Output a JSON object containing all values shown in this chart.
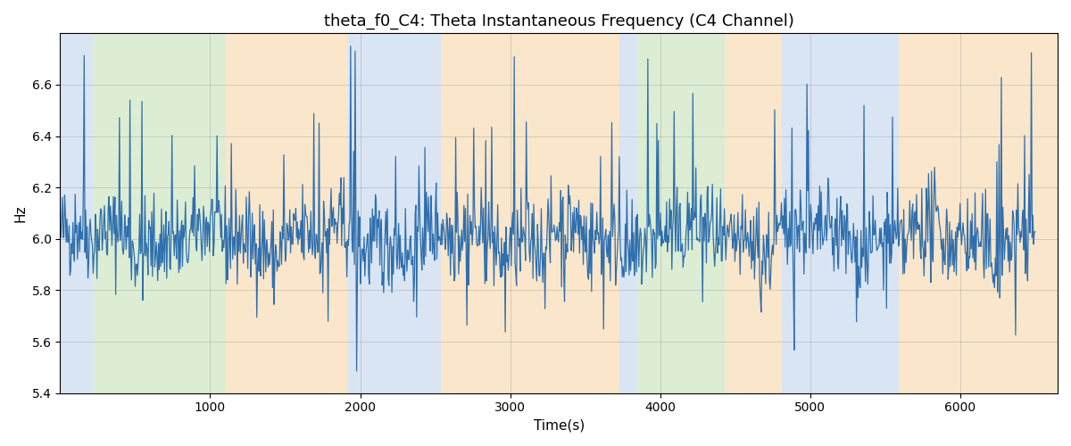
{
  "title": "theta_f0_C4: Theta Instantaneous Frequency (C4 Channel)",
  "xlabel": "Time(s)",
  "ylabel": "Hz",
  "ylim": [
    5.4,
    6.8
  ],
  "xlim": [
    0,
    6650
  ],
  "line_color": "#2f6fad",
  "line_width": 0.9,
  "bg_bands": [
    {
      "start": 0,
      "end": 215,
      "color": "#aec6e8",
      "alpha": 0.45
    },
    {
      "start": 215,
      "end": 1105,
      "color": "#b2d9a0",
      "alpha": 0.45
    },
    {
      "start": 1105,
      "end": 1920,
      "color": "#f5c98a",
      "alpha": 0.45
    },
    {
      "start": 1920,
      "end": 2540,
      "color": "#aec6e8",
      "alpha": 0.45
    },
    {
      "start": 2540,
      "end": 2640,
      "color": "#f5c98a",
      "alpha": 0.45
    },
    {
      "start": 2640,
      "end": 3730,
      "color": "#f5c98a",
      "alpha": 0.45
    },
    {
      "start": 3730,
      "end": 3850,
      "color": "#aec6e8",
      "alpha": 0.45
    },
    {
      "start": 3850,
      "end": 4430,
      "color": "#b2d9a0",
      "alpha": 0.45
    },
    {
      "start": 4430,
      "end": 4810,
      "color": "#f5c98a",
      "alpha": 0.45
    },
    {
      "start": 4810,
      "end": 5590,
      "color": "#aec6e8",
      "alpha": 0.45
    },
    {
      "start": 5590,
      "end": 6650,
      "color": "#f5c98a",
      "alpha": 0.45
    }
  ],
  "seed": 42,
  "n_points": 1300,
  "base_freq": 6.0,
  "noise_std": 0.09,
  "spike_count": 40,
  "spike_min": 0.25,
  "spike_max": 0.72,
  "title_fontsize": 13,
  "axis_label_fontsize": 11
}
